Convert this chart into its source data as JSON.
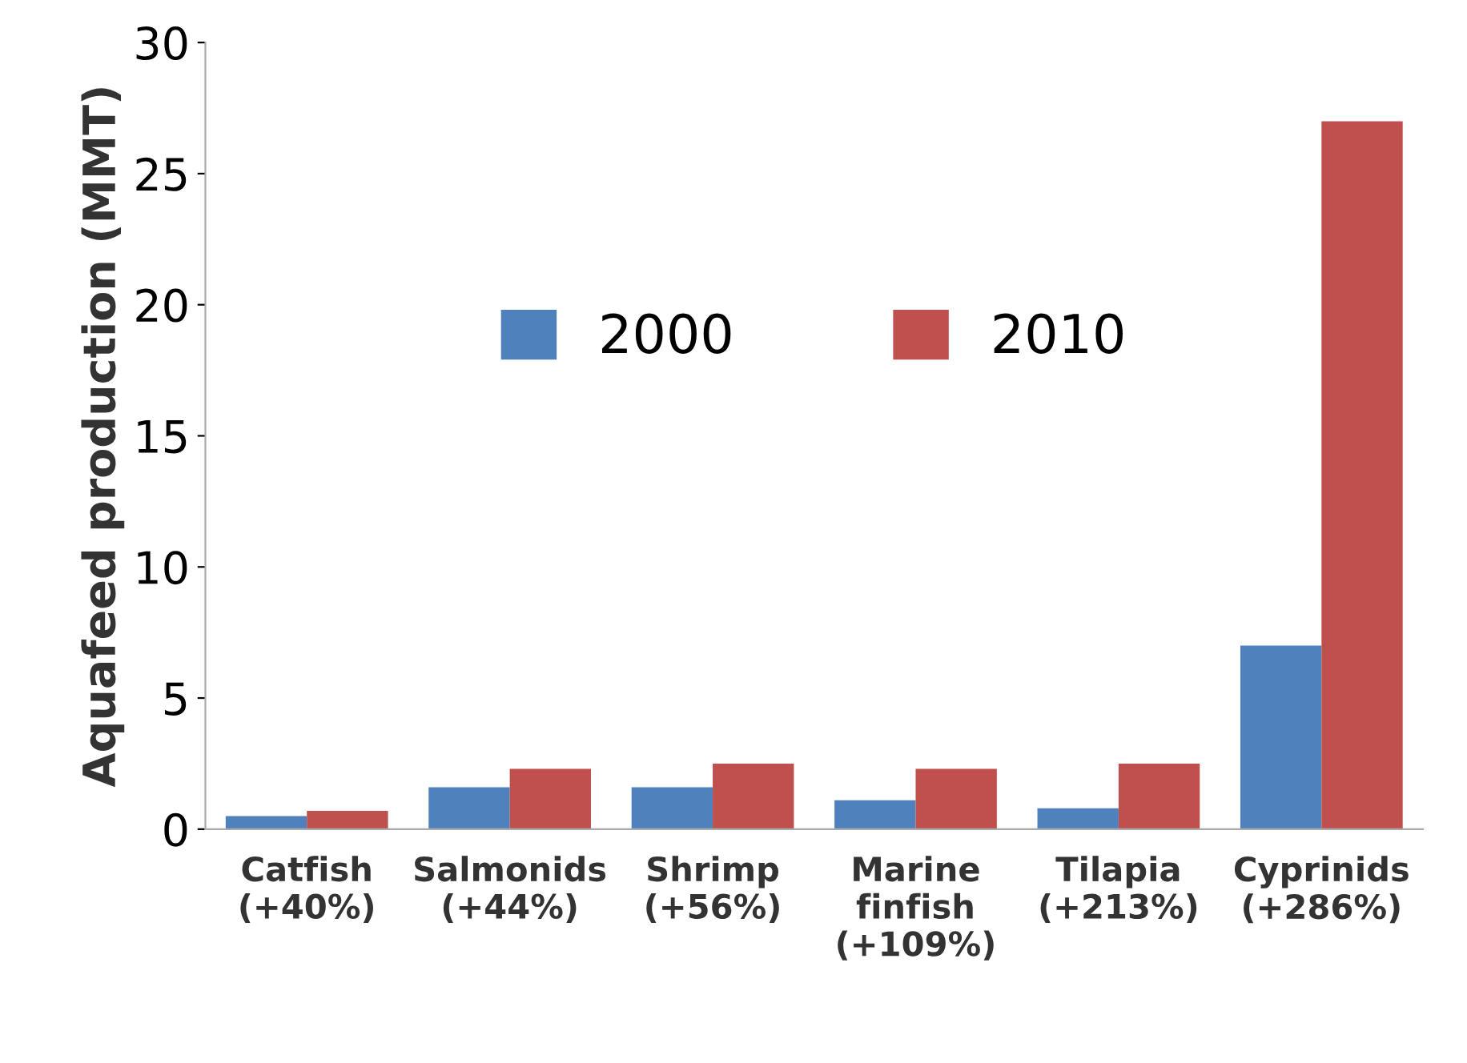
{
  "chart_data": {
    "type": "bar",
    "ylabel": "Aquafeed production (MMT)",
    "categories": [
      "Catfish\n(+40%)",
      "Salmonids\n(+44%)",
      "Shrimp\n(+56%)",
      "Marine\nfinfish\n(+109%)",
      "Tilapia\n(+213%)",
      "Cyprinids\n(+286%)"
    ],
    "series": [
      {
        "name": "2000",
        "color": "#4f81bd",
        "values": [
          0.5,
          1.6,
          1.6,
          1.1,
          0.8,
          7.0
        ]
      },
      {
        "name": "2010",
        "color": "#c0504d",
        "values": [
          0.7,
          2.3,
          2.5,
          2.3,
          2.5,
          27.0
        ]
      }
    ],
    "ylim": [
      0,
      30
    ],
    "yticks": [
      0,
      5,
      10,
      15,
      20,
      25,
      30
    ],
    "grid": false,
    "legend": "top"
  }
}
